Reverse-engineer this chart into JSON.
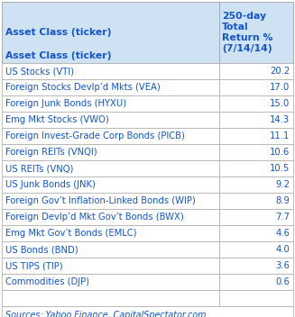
{
  "header_col1": "Asset Class (ticker)",
  "header_col2": "250-day\nTotal\nReturn %\n(7/14/14)",
  "rows": [
    [
      "US Stocks (VTI)",
      "20.2"
    ],
    [
      "Foreign Stocks Devlp’d Mkts (VEA)",
      "17.0"
    ],
    [
      "Foreign Junk Bonds (HYXU)",
      "15.0"
    ],
    [
      "Emg Mkt Stocks (VWO)",
      "14.3"
    ],
    [
      "Foreign Invest-Grade Corp Bonds (PICB)",
      "11.1"
    ],
    [
      "Foreign REITs (VNQI)",
      "10.6"
    ],
    [
      "US REITs (VNQ)",
      "10.5"
    ],
    [
      "US Junk Bonds (JNK)",
      "9.2"
    ],
    [
      "Foreign Gov’t Inflation-Linked Bonds (WIP)",
      "8.9"
    ],
    [
      "Foreign Devlp’d Mkt Gov’t Bonds (BWX)",
      "7.7"
    ],
    [
      "Emg Mkt Gov’t Bonds (EMLC)",
      "4.6"
    ],
    [
      "US Bonds (BND)",
      "4.0"
    ],
    [
      "US TIPS (TIP)",
      "3.6"
    ],
    [
      "Commodities (DJP)",
      "0.6"
    ]
  ],
  "empty_row": true,
  "footer": "Sources: Yahoo Finance, CapitalSpectator.com",
  "header_bg": "#cfe2f3",
  "row_bg": "#ffffff",
  "text_color": "#1155cc",
  "border_color": "#aaaaaa",
  "font_size": 7.2,
  "header_font_size": 7.8
}
